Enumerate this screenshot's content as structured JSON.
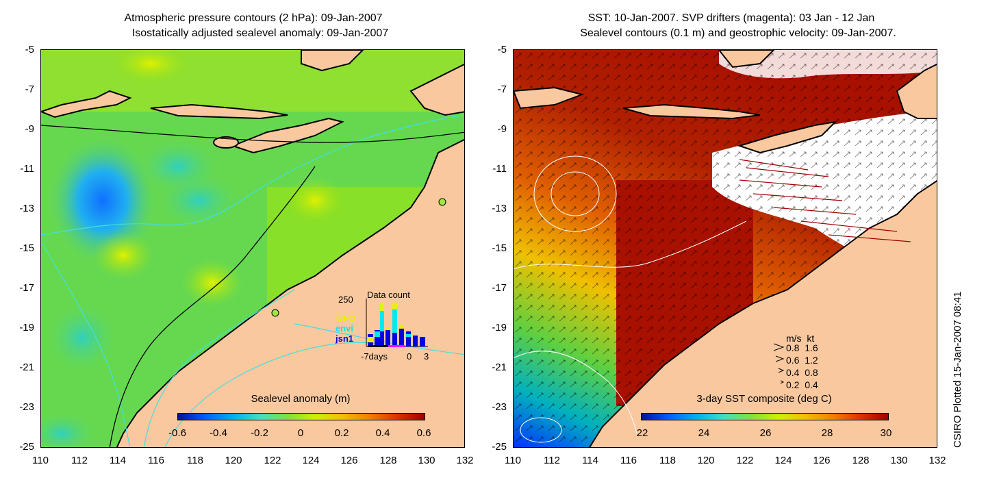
{
  "left_map": {
    "title_line1": "Atmospheric pressure contours (2 hPa): 09-Jan-2007",
    "title_line2": "Isostatically adjusted sealevel anomaly: 09-Jan-2007",
    "y_ticks": [
      "-5",
      "-7",
      "-9",
      "-11",
      "-13",
      "-15",
      "-17",
      "-19",
      "-21",
      "-23",
      "-25"
    ],
    "x_ticks": [
      "110",
      "112",
      "114",
      "116",
      "118",
      "120",
      "122",
      "124",
      "126",
      "128",
      "130",
      "132"
    ],
    "colorbar_label": "Sealevel anomaly (m)",
    "colorbar_ticks": [
      "-0.6",
      "-0.4",
      "-0.2",
      "0",
      "0.2",
      "0.4",
      "0.6"
    ],
    "inset": {
      "title": "Data count",
      "y_max_label": "250",
      "x_labels": [
        "-7days",
        "0",
        "3"
      ],
      "missions": [
        {
          "name": "GFO",
          "color": "#e8f000"
        },
        {
          "name": "envi",
          "color": "#00e8f0"
        },
        {
          "name": "jsn1",
          "color": "#0000e0"
        }
      ]
    }
  },
  "right_map": {
    "title_line1": "SST: 10-Jan-2007. SVP drifters (magenta): 03 Jan - 12 Jan",
    "title_line2": "Sealevel contours (0.1 m) and geostrophic velocity: 09-Jan-2007.",
    "y_ticks": [
      "-5",
      "-7",
      "-9",
      "-11",
      "-13",
      "-15",
      "-17",
      "-19",
      "-21",
      "-23",
      "-25"
    ],
    "x_ticks": [
      "110",
      "112",
      "114",
      "116",
      "118",
      "120",
      "122",
      "124",
      "126",
      "128",
      "130",
      "132"
    ],
    "colorbar_label": "3-day SST composite (deg C)",
    "colorbar_ticks": [
      "22",
      "24",
      "26",
      "28",
      "30"
    ],
    "velocity_legend": {
      "header_ms": "m/s",
      "header_kt": "kt",
      "rows": [
        {
          "ms": "0.8",
          "kt": "1.6"
        },
        {
          "ms": "0.6",
          "kt": "1.2"
        },
        {
          "ms": "0.4",
          "kt": "0.8"
        },
        {
          "ms": "0.2",
          "kt": "0.4"
        }
      ]
    }
  },
  "footer": "CSIRO Plotted 15-Jan-2007 08:41",
  "colors": {
    "land": "#f9c89e",
    "ocean_sla": "#7de03a",
    "sst_warm": "#a81000",
    "contour": "#40e0e0"
  }
}
